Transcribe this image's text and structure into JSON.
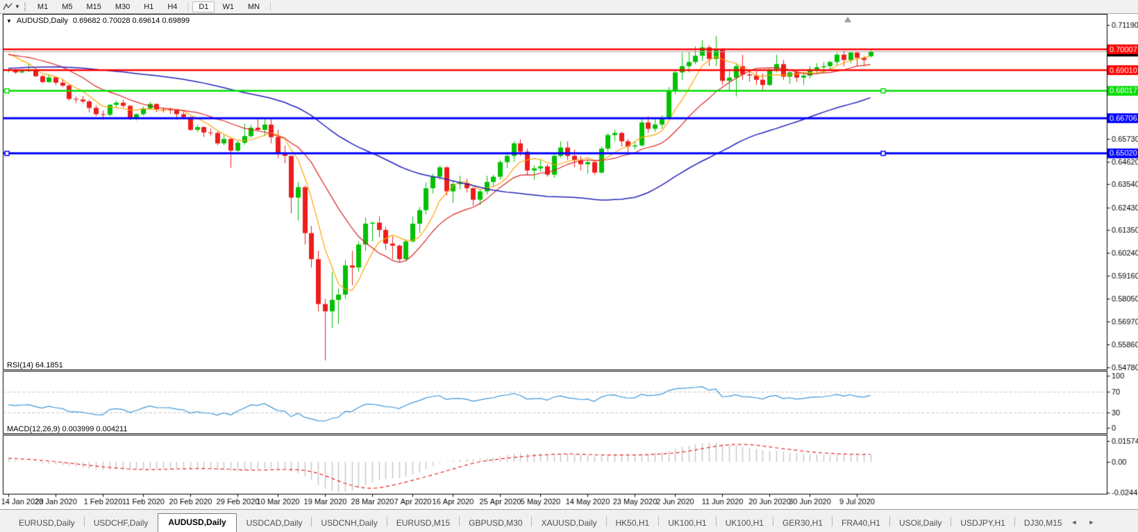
{
  "toolbar": {
    "buttons": [
      {
        "label": "M1",
        "active": false
      },
      {
        "label": "M5",
        "active": false
      },
      {
        "label": "M15",
        "active": false
      },
      {
        "label": "M30",
        "active": false
      },
      {
        "label": "H1",
        "active": false
      },
      {
        "label": "H4",
        "active": false
      },
      {
        "label": "D1",
        "active": true
      },
      {
        "label": "W1",
        "active": false
      },
      {
        "label": "MN",
        "active": false
      }
    ],
    "group_breaks_after": [
      "H4",
      "MN"
    ]
  },
  "chart": {
    "symbol_period": "AUDUSD,Daily",
    "ohlc_text": "0.69682 0.70028 0.69614 0.69899"
  },
  "chart_data": {
    "type": "candlestick",
    "symbol": "AUDUSD",
    "period": "Daily",
    "current": {
      "open": "0.69682",
      "high": "0.70028",
      "low": "0.69614",
      "close": "0.69899"
    },
    "candles": [
      [
        0.6901,
        0.691,
        0.6889,
        0.6903
      ],
      [
        0.6903,
        0.6908,
        0.6883,
        0.689
      ],
      [
        0.689,
        0.6905,
        0.6885,
        0.6896
      ],
      [
        0.6896,
        0.6932,
        0.6892,
        0.6901
      ],
      [
        0.6901,
        0.6911,
        0.6868,
        0.6872
      ],
      [
        0.6872,
        0.6878,
        0.6838,
        0.6844
      ],
      [
        0.6844,
        0.6879,
        0.684,
        0.6866
      ],
      [
        0.6866,
        0.6871,
        0.683,
        0.6841
      ],
      [
        0.6841,
        0.6857,
        0.682,
        0.6827
      ],
      [
        0.6827,
        0.6834,
        0.6755,
        0.6763
      ],
      [
        0.6763,
        0.6774,
        0.6744,
        0.676
      ],
      [
        0.676,
        0.6777,
        0.6741,
        0.6751
      ],
      [
        0.6751,
        0.6759,
        0.6699,
        0.672
      ],
      [
        0.672,
        0.6733,
        0.6682,
        0.669
      ],
      [
        0.669,
        0.6708,
        0.6663,
        0.6687
      ],
      [
        0.6687,
        0.6738,
        0.668,
        0.6735
      ],
      [
        0.6735,
        0.6756,
        0.6722,
        0.6745
      ],
      [
        0.6745,
        0.6759,
        0.6722,
        0.673
      ],
      [
        0.673,
        0.6733,
        0.6662,
        0.6673
      ],
      [
        0.6673,
        0.6694,
        0.666,
        0.669
      ],
      [
        0.669,
        0.6727,
        0.6683,
        0.6718
      ],
      [
        0.6718,
        0.6748,
        0.671,
        0.6739
      ],
      [
        0.6739,
        0.6741,
        0.67,
        0.6713
      ],
      [
        0.6713,
        0.6723,
        0.6697,
        0.6712
      ],
      [
        0.6712,
        0.6722,
        0.6691,
        0.671
      ],
      [
        0.671,
        0.6713,
        0.6663,
        0.669
      ],
      [
        0.669,
        0.6705,
        0.6665,
        0.6676
      ],
      [
        0.6676,
        0.6679,
        0.661,
        0.6615
      ],
      [
        0.6615,
        0.664,
        0.6604,
        0.6628
      ],
      [
        0.6628,
        0.6632,
        0.658,
        0.6602
      ],
      [
        0.6602,
        0.6622,
        0.6586,
        0.66
      ],
      [
        0.66,
        0.6606,
        0.6542,
        0.655
      ],
      [
        0.655,
        0.659,
        0.6542,
        0.6571
      ],
      [
        0.6571,
        0.6576,
        0.6433,
        0.6515
      ],
      [
        0.6515,
        0.6565,
        0.651,
        0.6553
      ],
      [
        0.6553,
        0.6645,
        0.6543,
        0.6585
      ],
      [
        0.6585,
        0.664,
        0.6576,
        0.6625
      ],
      [
        0.6625,
        0.6665,
        0.661,
        0.6615
      ],
      [
        0.6615,
        0.667,
        0.6585,
        0.664
      ],
      [
        0.664,
        0.6665,
        0.655,
        0.658
      ],
      [
        0.658,
        0.6615,
        0.648,
        0.65
      ],
      [
        0.65,
        0.654,
        0.6455,
        0.649
      ],
      [
        0.649,
        0.649,
        0.6215,
        0.629
      ],
      [
        0.629,
        0.6365,
        0.618,
        0.634
      ],
      [
        0.634,
        0.6348,
        0.6065,
        0.612
      ],
      [
        0.612,
        0.6155,
        0.5955,
        0.5995
      ],
      [
        0.5995,
        0.6035,
        0.5745,
        0.578
      ],
      [
        0.578,
        0.5805,
        0.551,
        0.5745
      ],
      [
        0.5745,
        0.5935,
        0.5665,
        0.58
      ],
      [
        0.58,
        0.5855,
        0.5685,
        0.5825
      ],
      [
        0.5825,
        0.599,
        0.5805,
        0.5965
      ],
      [
        0.5965,
        0.6035,
        0.587,
        0.5955
      ],
      [
        0.5955,
        0.608,
        0.5935,
        0.6065
      ],
      [
        0.6065,
        0.6195,
        0.6035,
        0.6165
      ],
      [
        0.6165,
        0.6175,
        0.608,
        0.617
      ],
      [
        0.617,
        0.62,
        0.61,
        0.6135
      ],
      [
        0.6135,
        0.615,
        0.604,
        0.607
      ],
      [
        0.607,
        0.6105,
        0.5995,
        0.606
      ],
      [
        0.606,
        0.6065,
        0.598,
        0.5995
      ],
      [
        0.5995,
        0.609,
        0.5985,
        0.608
      ],
      [
        0.608,
        0.62,
        0.6075,
        0.6165
      ],
      [
        0.6165,
        0.6245,
        0.612,
        0.623
      ],
      [
        0.623,
        0.6363,
        0.621,
        0.6335
      ],
      [
        0.6335,
        0.6405,
        0.631,
        0.639
      ],
      [
        0.639,
        0.6445,
        0.6375,
        0.6435
      ],
      [
        0.6435,
        0.644,
        0.63,
        0.632
      ],
      [
        0.632,
        0.637,
        0.6265,
        0.6355
      ],
      [
        0.6355,
        0.6395,
        0.633,
        0.636
      ],
      [
        0.636,
        0.638,
        0.6315,
        0.6335
      ],
      [
        0.6335,
        0.634,
        0.625,
        0.628
      ],
      [
        0.628,
        0.633,
        0.6255,
        0.632
      ],
      [
        0.632,
        0.6395,
        0.6305,
        0.6365
      ],
      [
        0.6365,
        0.64,
        0.634,
        0.639
      ],
      [
        0.639,
        0.647,
        0.6375,
        0.646
      ],
      [
        0.646,
        0.651,
        0.643,
        0.649
      ],
      [
        0.649,
        0.656,
        0.646,
        0.655
      ],
      [
        0.655,
        0.657,
        0.649,
        0.651
      ],
      [
        0.651,
        0.6525,
        0.64,
        0.642
      ],
      [
        0.642,
        0.6445,
        0.6375,
        0.643
      ],
      [
        0.643,
        0.6475,
        0.6415,
        0.644
      ],
      [
        0.644,
        0.645,
        0.639,
        0.64
      ],
      [
        0.64,
        0.65,
        0.6385,
        0.649
      ],
      [
        0.649,
        0.656,
        0.648,
        0.653
      ],
      [
        0.653,
        0.656,
        0.647,
        0.649
      ],
      [
        0.649,
        0.652,
        0.6435,
        0.647
      ],
      [
        0.647,
        0.649,
        0.642,
        0.645
      ],
      [
        0.645,
        0.6475,
        0.6405,
        0.646
      ],
      [
        0.646,
        0.6465,
        0.64,
        0.641
      ],
      [
        0.641,
        0.6535,
        0.6405,
        0.6525
      ],
      [
        0.6525,
        0.66,
        0.651,
        0.659
      ],
      [
        0.659,
        0.6615,
        0.656,
        0.66
      ],
      [
        0.66,
        0.6605,
        0.6535,
        0.656
      ],
      [
        0.656,
        0.657,
        0.6505,
        0.6535
      ],
      [
        0.6535,
        0.656,
        0.652,
        0.654
      ],
      [
        0.654,
        0.6675,
        0.6535,
        0.665
      ],
      [
        0.665,
        0.668,
        0.66,
        0.662
      ],
      [
        0.662,
        0.6665,
        0.6605,
        0.664
      ],
      [
        0.664,
        0.6685,
        0.662,
        0.667
      ],
      [
        0.667,
        0.682,
        0.6668,
        0.68
      ],
      [
        0.68,
        0.69,
        0.6785,
        0.689
      ],
      [
        0.689,
        0.6985,
        0.6855,
        0.692
      ],
      [
        0.692,
        0.699,
        0.689,
        0.694
      ],
      [
        0.694,
        0.7015,
        0.693,
        0.697
      ],
      [
        0.697,
        0.7045,
        0.6945,
        0.701
      ],
      [
        0.701,
        0.702,
        0.692,
        0.6955
      ],
      [
        0.6955,
        0.7065,
        0.692,
        0.7
      ],
      [
        0.7,
        0.7005,
        0.683,
        0.685
      ],
      [
        0.685,
        0.6905,
        0.68,
        0.6865
      ],
      [
        0.6865,
        0.6935,
        0.6775,
        0.692
      ],
      [
        0.692,
        0.6975,
        0.6855,
        0.688
      ],
      [
        0.688,
        0.6905,
        0.6845,
        0.6875
      ],
      [
        0.6875,
        0.6895,
        0.683,
        0.6855
      ],
      [
        0.6855,
        0.6885,
        0.6805,
        0.683
      ],
      [
        0.683,
        0.691,
        0.6825,
        0.6905
      ],
      [
        0.6905,
        0.6975,
        0.689,
        0.693
      ],
      [
        0.693,
        0.695,
        0.6855,
        0.687
      ],
      [
        0.687,
        0.6895,
        0.6835,
        0.689
      ],
      [
        0.689,
        0.69,
        0.6845,
        0.6865
      ],
      [
        0.6865,
        0.689,
        0.683,
        0.6875
      ],
      [
        0.6875,
        0.692,
        0.686,
        0.6905
      ],
      [
        0.6905,
        0.6935,
        0.688,
        0.6915
      ],
      [
        0.6915,
        0.694,
        0.6885,
        0.692
      ],
      [
        0.692,
        0.6945,
        0.69,
        0.694
      ],
      [
        0.694,
        0.6985,
        0.6925,
        0.6975
      ],
      [
        0.6975,
        0.6995,
        0.692,
        0.695
      ],
      [
        0.695,
        0.699,
        0.6935,
        0.6985
      ],
      [
        0.6985,
        0.699,
        0.692,
        0.696
      ],
      [
        0.696,
        0.697,
        0.692,
        0.695
      ],
      [
        0.69682,
        0.70028,
        0.69614,
        0.69899
      ]
    ],
    "x_axis": {
      "ticks": [
        {
          "i": 0,
          "label": "14 Jan 2020"
        },
        {
          "i": 7,
          "label": "23 Jan 2020"
        },
        {
          "i": 14,
          "label": "1 Feb 2020"
        },
        {
          "i": 20,
          "label": "11 Feb 2020"
        },
        {
          "i": 27,
          "label": "20 Feb 2020"
        },
        {
          "i": 34,
          "label": "29 Feb 2020"
        },
        {
          "i": 40,
          "label": "10 Mar 2020"
        },
        {
          "i": 47,
          "label": "19 Mar 2020"
        },
        {
          "i": 54,
          "label": "28 Mar 2020"
        },
        {
          "i": 60,
          "label": "7 Apr 2020"
        },
        {
          "i": 66,
          "label": "16 Apr 2020"
        },
        {
          "i": 73,
          "label": "25 Apr 2020"
        },
        {
          "i": 79,
          "label": "5 May 2020"
        },
        {
          "i": 86,
          "label": "14 May 2020"
        },
        {
          "i": 93,
          "label": "23 May 2020"
        },
        {
          "i": 99,
          "label": "2 Jun 2020"
        },
        {
          "i": 106,
          "label": "11 Jun 2020"
        },
        {
          "i": 113,
          "label": "20 Jun 2020"
        },
        {
          "i": 119,
          "label": "30 Jun 2020"
        },
        {
          "i": 126,
          "label": "9 Jul 2020"
        }
      ]
    },
    "price_axis": {
      "max_tick": "0.71190",
      "min_tick": "0.54780",
      "ticks": [
        "0.71190",
        "0.65730",
        "0.64620",
        "0.63540",
        "0.62430",
        "0.61350",
        "0.60240",
        "0.59160",
        "0.58050",
        "0.56970",
        "0.55860",
        "0.54780"
      ]
    },
    "hlines": [
      {
        "price": 0.70007,
        "label": "0.70007",
        "color": "#ff0000",
        "width": 2.5,
        "handles": false
      },
      {
        "price": 0.6901,
        "label": "0.69010",
        "color": "#ff0000",
        "width": 2.5,
        "handles": false
      },
      {
        "price": 0.68017,
        "label": "0.68017",
        "color": "#00dd00",
        "width": 2.5,
        "handles": true
      },
      {
        "price": 0.66706,
        "label": "0.66706",
        "color": "#0000ff",
        "width": 3,
        "handles": false
      },
      {
        "price": 0.6502,
        "label": "0.65020",
        "color": "#0000ff",
        "width": 3,
        "handles": true
      }
    ],
    "current_price": {
      "value": "0.69899",
      "line_color": "#a8a8a8",
      "badge_bg": "#000000"
    },
    "moving_averages": [
      {
        "name": "ma-fast",
        "period": 6,
        "color": "#ffa500",
        "width": 1.2
      },
      {
        "name": "ma-mid",
        "period": 14,
        "color": "#dd2222",
        "width": 1.2
      },
      {
        "name": "ma-slow",
        "period": 50,
        "color": "#2121bd",
        "width": 1.5
      }
    ],
    "rsi": {
      "label": "RSI(14) 64.1851",
      "period": 14,
      "value": "64.1851",
      "line_color": "#3d96d9",
      "levels": [
        70,
        30
      ],
      "axis_labels": [
        "100",
        "70",
        "30",
        "0"
      ]
    },
    "macd": {
      "label": "MACD(12,26,9) 0.003999 0.004211",
      "fast": 12,
      "slow": 26,
      "signal": 9,
      "value": "0.003999",
      "signal_value": "0.004211",
      "hist_color": "#c6c6c6",
      "signal_color": "#ee2222",
      "axis_labels": [
        "0.015741",
        "0.00",
        "-0.024412"
      ]
    },
    "colors": {
      "up": "#00c000",
      "down": "#ee1c1c",
      "background": "#ffffff",
      "border": "#000000",
      "level_dash": "#c3c3c3",
      "end_marker": "#9a9a9a"
    }
  },
  "tabbar": {
    "tabs": [
      {
        "label": "EURUSD,Daily",
        "active": false
      },
      {
        "label": "USDCHF,Daily",
        "active": false
      },
      {
        "label": "AUDUSD,Daily",
        "active": true
      },
      {
        "label": "USDCAD,Daily",
        "active": false
      },
      {
        "label": "USDCNH,Daily",
        "active": false
      },
      {
        "label": "EURUSD,M15",
        "active": false
      },
      {
        "label": "GBPUSD,M30",
        "active": false
      },
      {
        "label": "XAUUSD,Daily",
        "active": false
      },
      {
        "label": "HK50,H1",
        "active": false
      },
      {
        "label": "UK100,H1",
        "active": false
      },
      {
        "label": "UK100,H1",
        "active": false
      },
      {
        "label": "GER30,H1",
        "active": false
      },
      {
        "label": "FRA40,H1",
        "active": false
      },
      {
        "label": "USOil,Daily",
        "active": false
      },
      {
        "label": "USDJPY,H1",
        "active": false
      },
      {
        "label": "DJ30,M15",
        "active": false
      }
    ],
    "scroll_left_glyph": "◄",
    "scroll_right_glyph": "►"
  }
}
